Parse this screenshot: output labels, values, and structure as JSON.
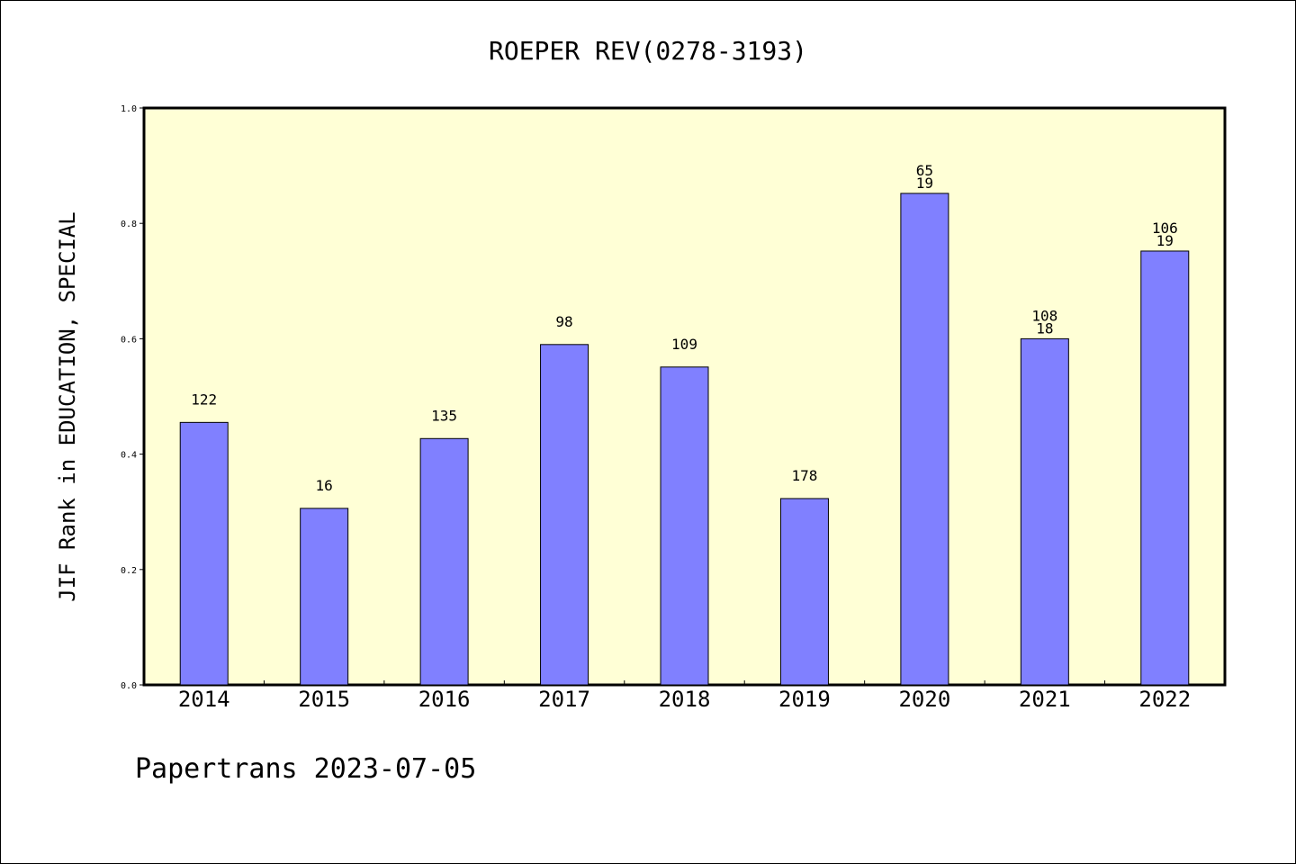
{
  "chart_data": {
    "type": "bar",
    "title": "ROEPER REV(0278-3193)",
    "xlabel": "",
    "ylabel": "JIF Rank in EDUCATION, SPECIAL",
    "categories": [
      "2014",
      "2015",
      "2016",
      "2017",
      "2018",
      "2019",
      "2020",
      "2021",
      "2022"
    ],
    "values": [
      0.455,
      0.306,
      0.427,
      0.59,
      0.551,
      0.323,
      0.852,
      0.6,
      0.752
    ],
    "bar_labels": [
      [
        "122"
      ],
      [
        "16"
      ],
      [
        "135"
      ],
      [
        "98"
      ],
      [
        "109"
      ],
      [
        "178"
      ],
      [
        "65",
        "19"
      ],
      [
        "108",
        "18"
      ],
      [
        "106",
        "19"
      ]
    ],
    "ylim": [
      0,
      1.0
    ],
    "yticks": [
      "0.0",
      "0.2",
      "0.4",
      "0.6",
      "0.8",
      "1.0"
    ],
    "grid": false,
    "colors": {
      "plot_background": "#ffffd6",
      "bar_fill": "#8080ff",
      "bar_stroke": "#000000"
    }
  },
  "footer": "Papertrans 2023-07-05"
}
